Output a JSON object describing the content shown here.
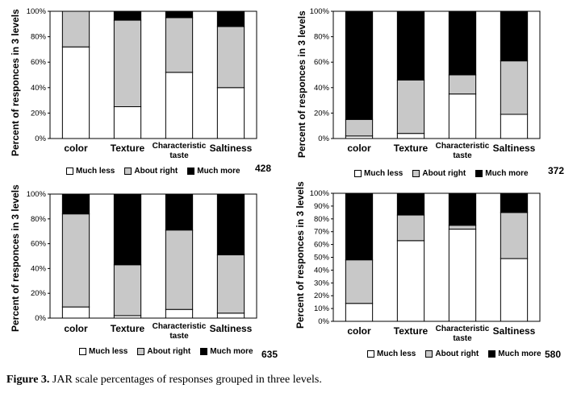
{
  "caption": {
    "label": "Figure 3.",
    "text": " JAR scale percentages of responses grouped in three levels."
  },
  "colors": {
    "much_less": "#ffffff",
    "about_right": "#c8c8c8",
    "much_more": "#000000"
  },
  "chart_data": [
    {
      "type": "bar",
      "stacked": true,
      "code": "428",
      "ylabel": "Percent of responces in 3 levels",
      "categories": [
        "color",
        "Texture",
        "Characteristic taste",
        "Saltiness"
      ],
      "yticks": [
        "0%",
        "20%",
        "40%",
        "60%",
        "80%",
        "100%"
      ],
      "ylim": [
        0,
        100
      ],
      "series": [
        {
          "name": "Much less",
          "values": [
            72,
            25,
            52,
            40
          ]
        },
        {
          "name": "About right",
          "values": [
            28,
            68,
            43,
            48
          ]
        },
        {
          "name": "Much more",
          "values": [
            0,
            7,
            5,
            12
          ]
        }
      ]
    },
    {
      "type": "bar",
      "stacked": true,
      "code": "372",
      "ylabel": "Percent of responces in 3 levels",
      "categories": [
        "color",
        "Texture",
        "Characteristic taste",
        "Saltiness"
      ],
      "yticks": [
        "0%",
        "20%",
        "40%",
        "60%",
        "80%",
        "100%"
      ],
      "ylim": [
        0,
        100
      ],
      "series": [
        {
          "name": "Much less",
          "values": [
            2,
            4,
            35,
            19
          ]
        },
        {
          "name": "About right",
          "values": [
            13,
            42,
            15,
            42
          ]
        },
        {
          "name": "Much more",
          "values": [
            85,
            54,
            50,
            39
          ]
        }
      ]
    },
    {
      "type": "bar",
      "stacked": true,
      "code": "635",
      "ylabel": "Percent of responces in 3 levels",
      "categories": [
        "color",
        "Texture",
        "Characteristic taste",
        "Saltiness"
      ],
      "yticks": [
        "0%",
        "20%",
        "40%",
        "60%",
        "80%",
        "100%"
      ],
      "ylim": [
        0,
        100
      ],
      "series": [
        {
          "name": "Much less",
          "values": [
            9,
            2,
            7,
            4
          ]
        },
        {
          "name": "About right",
          "values": [
            75,
            41,
            64,
            47
          ]
        },
        {
          "name": "Much more",
          "values": [
            16,
            57,
            29,
            49
          ]
        }
      ]
    },
    {
      "type": "bar",
      "stacked": true,
      "code": "580",
      "ylabel": "Percent of responces in 3 levels",
      "categories": [
        "color",
        "Texture",
        "Characteristic taste",
        "Saltiness"
      ],
      "yticks": [
        "0%",
        "10%",
        "20%",
        "30%",
        "40%",
        "50%",
        "60%",
        "70%",
        "80%",
        "90%",
        "100%"
      ],
      "ylim": [
        0,
        100
      ],
      "series": [
        {
          "name": "Much less",
          "values": [
            14,
            63,
            72,
            49
          ]
        },
        {
          "name": "About right",
          "values": [
            34,
            20,
            3,
            36
          ]
        },
        {
          "name": "Much more",
          "values": [
            52,
            17,
            25,
            15
          ]
        }
      ]
    }
  ]
}
